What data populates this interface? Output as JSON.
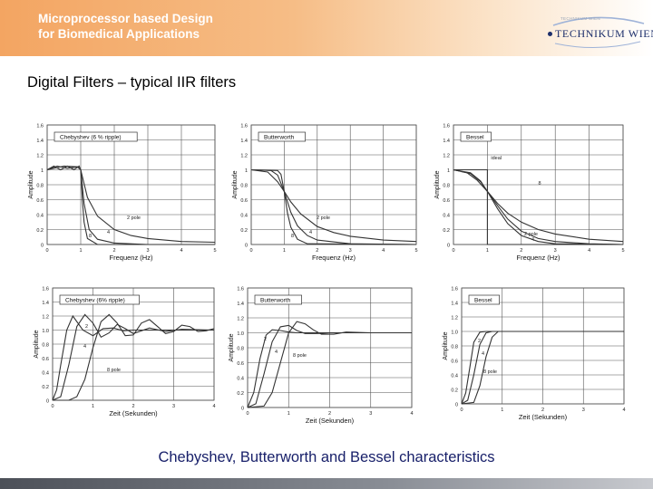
{
  "header": {
    "title_line1": "Microprocessor based Design",
    "title_line2": "for Biomedical Applications",
    "logo_text": "TECHNIKUM WIEN",
    "logo_small": "TECHNIKUM WIEN"
  },
  "slide": {
    "heading": "Digital Filters – typical  IIR filters",
    "caption": "Chebyshev, Butterworth and Bessel characteristics"
  },
  "colors": {
    "banner": "#f3a562",
    "caption": "#18206a",
    "curve": "#333333"
  },
  "chart_data": [
    {
      "type": "line",
      "title": "Chebyshev (6 % ripple)",
      "xlabel": "Frequenz (Hz)",
      "ylabel": "Amplitude",
      "xlim": [
        0,
        5
      ],
      "ylim": [
        0,
        1.6
      ],
      "xticks": [
        "0",
        "1",
        "2",
        "3",
        "4",
        "5"
      ],
      "yticks": [
        "0",
        "0.2",
        "0.4",
        "0.6",
        "0.8",
        "1",
        "1.2",
        "1.4",
        "1.6"
      ],
      "series": [
        {
          "name": "2 pole",
          "x": [
            0,
            0.5,
            0.9,
            1,
            1.2,
            1.5,
            2,
            2.5,
            3,
            4,
            5
          ],
          "y": [
            1.0,
            1.05,
            1.04,
            1.0,
            0.63,
            0.38,
            0.2,
            0.12,
            0.08,
            0.04,
            0.03
          ]
        },
        {
          "name": "4",
          "x": [
            0,
            0.3,
            0.6,
            0.9,
            1,
            1.1,
            1.25,
            1.5,
            2,
            3,
            5
          ],
          "y": [
            1.0,
            1.05,
            1.02,
            1.04,
            1.0,
            0.55,
            0.2,
            0.07,
            0.02,
            0.0,
            0.0
          ]
        },
        {
          "name": "8",
          "x": [
            0,
            0.2,
            0.4,
            0.6,
            0.8,
            0.95,
            1,
            1.05,
            1.1,
            1.2,
            1.5,
            5
          ],
          "y": [
            1.0,
            1.05,
            1.0,
            1.05,
            1.0,
            1.05,
            1.0,
            0.6,
            0.3,
            0.08,
            0.0,
            0.0
          ]
        }
      ],
      "annotations": []
    },
    {
      "type": "line",
      "title": "Butterworth",
      "xlabel": "Frequenz (Hz)",
      "ylabel": "Amplitude",
      "xlim": [
        0,
        5
      ],
      "ylim": [
        0,
        1.6
      ],
      "xticks": [
        "0",
        "1",
        "2",
        "3",
        "4",
        "5"
      ],
      "yticks": [
        "0",
        "0.2",
        "0.4",
        "0.6",
        "0.8",
        "1",
        "1.2",
        "1.4",
        "1.6"
      ],
      "series": [
        {
          "name": "2 pole",
          "x": [
            0,
            0.5,
            0.8,
            1,
            1.2,
            1.5,
            2,
            2.5,
            3,
            4,
            5
          ],
          "y": [
            1.0,
            0.97,
            0.84,
            0.71,
            0.57,
            0.41,
            0.24,
            0.16,
            0.11,
            0.06,
            0.04
          ]
        },
        {
          "name": "4",
          "x": [
            0,
            0.6,
            0.8,
            1,
            1.2,
            1.4,
            1.7,
            2,
            3,
            5
          ],
          "y": [
            1.0,
            0.99,
            0.93,
            0.71,
            0.43,
            0.25,
            0.12,
            0.06,
            0.01,
            0.0
          ]
        },
        {
          "name": "8",
          "x": [
            0,
            0.8,
            0.9,
            1,
            1.1,
            1.2,
            1.4,
            1.7,
            5
          ],
          "y": [
            1.0,
            0.99,
            0.94,
            0.71,
            0.42,
            0.23,
            0.07,
            0.01,
            0.0
          ]
        }
      ],
      "annotations": []
    },
    {
      "type": "line",
      "title": "Bessel",
      "xlabel": "Frequenz (Hz)",
      "ylabel": "Amplitude",
      "xlim": [
        0,
        5
      ],
      "ylim": [
        0,
        1.6
      ],
      "xticks": [
        "0",
        "1",
        "2",
        "3",
        "4",
        "5"
      ],
      "yticks": [
        "0",
        "0.2",
        "0.4",
        "0.6",
        "0.8",
        "1",
        "1.2",
        "1.4",
        "1.6"
      ],
      "series": [
        {
          "name": "ideal",
          "x": [
            0,
            1,
            1,
            5
          ],
          "y": [
            1.0,
            1.0,
            0.0,
            0.0
          ]
        },
        {
          "name": "2 pole",
          "x": [
            0,
            0.4,
            0.7,
            1,
            1.3,
            1.6,
            2,
            2.5,
            3,
            4,
            5
          ],
          "y": [
            1.0,
            0.96,
            0.86,
            0.71,
            0.55,
            0.42,
            0.3,
            0.2,
            0.14,
            0.07,
            0.04
          ]
        },
        {
          "name": "4",
          "x": [
            0,
            0.5,
            0.8,
            1,
            1.3,
            1.6,
            2,
            2.5,
            3,
            4,
            5
          ],
          "y": [
            1.0,
            0.95,
            0.84,
            0.71,
            0.52,
            0.34,
            0.18,
            0.08,
            0.04,
            0.01,
            0.0
          ]
        },
        {
          "name": "8",
          "x": [
            0,
            0.5,
            0.8,
            1,
            1.3,
            1.6,
            2,
            2.5,
            3,
            5
          ],
          "y": [
            1.0,
            0.96,
            0.85,
            0.71,
            0.48,
            0.28,
            0.12,
            0.04,
            0.01,
            0.0
          ]
        }
      ],
      "annotations": []
    },
    {
      "type": "line",
      "title": "Chebyshev (6% ripple)",
      "xlabel": "Zeit (Sekunden)",
      "ylabel": "Amplitude",
      "xlim": [
        0,
        4
      ],
      "ylim": [
        0,
        1.6
      ],
      "xticks": [
        "0",
        "1",
        "2",
        "3",
        "4"
      ],
      "yticks": [
        "0",
        "0.2",
        "0.4",
        "0.6",
        "0.8",
        "1.0",
        "1.2",
        "1.4",
        "1.6"
      ],
      "series": [
        {
          "name": "2",
          "x": [
            0,
            0.1,
            0.2,
            0.35,
            0.5,
            0.75,
            1,
            1.25,
            1.5,
            1.75,
            2,
            2.5,
            3,
            3.5,
            4
          ],
          "y": [
            0,
            0.15,
            0.5,
            1.0,
            1.2,
            1.0,
            0.92,
            1.02,
            1.03,
            0.99,
            1.0,
            1.0,
            1.0,
            1.0,
            1.0
          ]
        },
        {
          "name": "4",
          "x": [
            0,
            0.2,
            0.4,
            0.6,
            0.8,
            1,
            1.2,
            1.4,
            1.6,
            1.8,
            2,
            2.4,
            2.8,
            3.2,
            4
          ],
          "y": [
            0,
            0.05,
            0.5,
            1.05,
            1.22,
            1.1,
            0.9,
            0.96,
            1.08,
            1.02,
            0.95,
            1.03,
            0.98,
            1.01,
            1.0
          ]
        },
        {
          "name": "8 pole",
          "x": [
            0,
            0.4,
            0.6,
            0.8,
            1,
            1.2,
            1.4,
            1.6,
            1.8,
            2,
            2.2,
            2.4,
            2.6,
            2.8,
            3,
            3.2,
            3.4,
            3.6,
            3.8,
            4
          ],
          "y": [
            0,
            0.0,
            0.05,
            0.3,
            0.75,
            1.12,
            1.22,
            1.1,
            0.92,
            0.93,
            1.1,
            1.15,
            1.05,
            0.95,
            0.98,
            1.07,
            1.05,
            0.98,
            0.99,
            1.02
          ]
        }
      ],
      "annotations": []
    },
    {
      "type": "line",
      "title": "Butterworth",
      "xlabel": "Zeit (Sekunden)",
      "ylabel": "Amplitude",
      "xlim": [
        0,
        4
      ],
      "ylim": [
        0,
        1.6
      ],
      "xticks": [
        "0",
        "1",
        "2",
        "3",
        "4"
      ],
      "yticks": [
        "0",
        "0.2",
        "0.4",
        "0.6",
        "0.8",
        "1.0",
        "1.2",
        "1.4",
        "1.6"
      ],
      "series": [
        {
          "name": "2",
          "x": [
            0,
            0.15,
            0.3,
            0.45,
            0.6,
            0.8,
            1,
            1.2,
            1.5,
            2,
            3,
            4
          ],
          "y": [
            0,
            0.2,
            0.65,
            0.97,
            1.04,
            1.03,
            1.01,
            1.0,
            1.0,
            1.0,
            1.0,
            1.0
          ]
        },
        {
          "name": "4",
          "x": [
            0,
            0.2,
            0.4,
            0.6,
            0.8,
            1,
            1.2,
            1.4,
            1.7,
            2,
            3,
            4
          ],
          "y": [
            0,
            0.05,
            0.45,
            0.88,
            1.08,
            1.1,
            1.03,
            0.99,
            0.99,
            1.0,
            1.0,
            1.0
          ]
        },
        {
          "name": "8 pole",
          "x": [
            0,
            0.4,
            0.6,
            0.8,
            1,
            1.2,
            1.4,
            1.6,
            1.8,
            2.1,
            2.4,
            3,
            4
          ],
          "y": [
            0,
            0.02,
            0.2,
            0.6,
            1.0,
            1.15,
            1.12,
            1.04,
            0.98,
            0.98,
            1.01,
            1.0,
            1.0
          ]
        }
      ],
      "annotations": []
    },
    {
      "type": "line",
      "title": "Bessel",
      "xlabel": "Zeit (Sekunden)",
      "ylabel": "Amplitude",
      "xlim": [
        0,
        4
      ],
      "ylim": [
        0,
        1.6
      ],
      "xticks": [
        "0",
        "1",
        "2",
        "3",
        "4"
      ],
      "yticks": [
        "0",
        "0.2",
        "0.4",
        "0.6",
        "0.8",
        "1.0",
        "1.2",
        "1.4",
        "1.6"
      ],
      "series": [
        {
          "name": "2",
          "x": [
            0,
            0.1,
            0.2,
            0.3,
            0.45,
            0.6,
            0.8,
            1,
            1.5,
            4
          ],
          "y": [
            0,
            0.15,
            0.5,
            0.85,
            0.99,
            1.0,
            1.0,
            1.0,
            1.0,
            1.0
          ]
        },
        {
          "name": "4",
          "x": [
            0,
            0.15,
            0.3,
            0.45,
            0.6,
            0.75,
            0.9,
            1.2,
            4
          ],
          "y": [
            0,
            0.05,
            0.4,
            0.82,
            0.98,
            1.0,
            1.0,
            1.0,
            1.0
          ]
        },
        {
          "name": "8 pole",
          "x": [
            0,
            0.3,
            0.45,
            0.6,
            0.75,
            0.9,
            1.05,
            1.3,
            4
          ],
          "y": [
            0,
            0.02,
            0.25,
            0.65,
            0.92,
            1.0,
            1.0,
            1.0,
            1.0
          ]
        }
      ],
      "annotations": []
    }
  ]
}
